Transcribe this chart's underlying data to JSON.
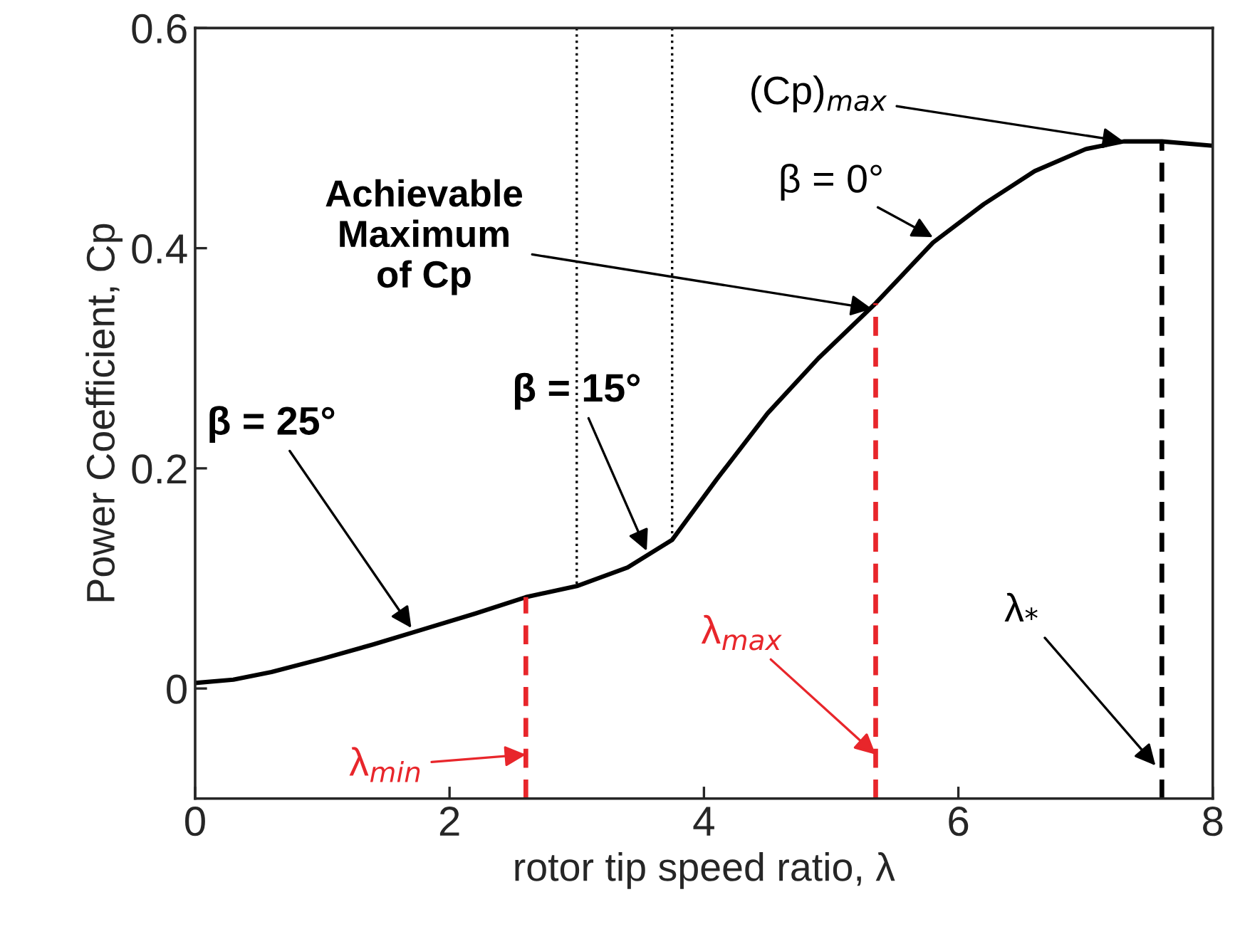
{
  "chart_data": {
    "type": "line",
    "xlabel": "rotor tip speed ratio, λ",
    "ylabel": "Power Coefficient, Cp",
    "xlim": [
      0,
      8
    ],
    "ylim": [
      -0.1,
      0.6
    ],
    "xticks": [
      0,
      2,
      4,
      6,
      8
    ],
    "yticks": [
      0,
      0.2,
      0.4,
      0.6
    ],
    "grid": false,
    "legend": false,
    "marker": "none",
    "series": [
      {
        "color": "#000000",
        "line_style": "solid",
        "x": [
          0,
          0.3,
          0.6,
          1.0,
          1.4,
          1.8,
          2.2,
          2.6,
          3.0,
          3.4,
          3.75,
          4.1,
          4.5,
          4.9,
          5.35,
          5.8,
          6.2,
          6.6,
          7.0,
          7.3,
          7.6,
          8.0
        ],
        "values": [
          0.005,
          0.008,
          0.015,
          0.027,
          0.04,
          0.054,
          0.068,
          0.083,
          0.093,
          0.11,
          0.135,
          0.19,
          0.25,
          0.3,
          0.35,
          0.405,
          0.44,
          0.47,
          0.49,
          0.497,
          0.497,
          0.493
        ]
      },
      {
        "color": "#e8262b",
        "line_style": "dashed",
        "x": [
          2.6,
          2.6
        ],
        "values": [
          -0.1,
          0.083
        ]
      },
      {
        "color": "#e8262b",
        "line_style": "dashed",
        "x": [
          5.35,
          5.35
        ],
        "values": [
          -0.1,
          0.35
        ]
      },
      {
        "color": "#000000",
        "line_style": "dashed",
        "x": [
          7.6,
          7.6
        ],
        "values": [
          -0.1,
          0.497
        ]
      },
      {
        "color": "#000000",
        "line_style": "dotted",
        "x": [
          3.0,
          3.0
        ],
        "values": [
          0.6,
          0.093
        ]
      },
      {
        "color": "#000000",
        "line_style": "dotted",
        "x": [
          3.75,
          3.75
        ],
        "values": [
          0.6,
          0.135
        ]
      }
    ],
    "annotations": [
      {
        "text": "β = 25°",
        "x": 1.7,
        "y": 0.055
      },
      {
        "text": "β = 15°",
        "x": 3.55,
        "y": 0.125
      },
      {
        "text": "β = 0°",
        "x": 5.8,
        "y": 0.41
      },
      {
        "text": "Achievable\nMaximum\nof Cp",
        "x": 5.32,
        "y": 0.345
      },
      {
        "text": "(Cp)$_{max}$",
        "x": 7.3,
        "y": 0.497
      },
      {
        "text": "λ$_{min}$",
        "x": 2.6,
        "y": -0.06
      },
      {
        "text": "λ$_{max}$",
        "x": 5.35,
        "y": -0.06
      },
      {
        "text": "λ$_{*}$",
        "x": 7.55,
        "y": -0.07
      }
    ]
  }
}
